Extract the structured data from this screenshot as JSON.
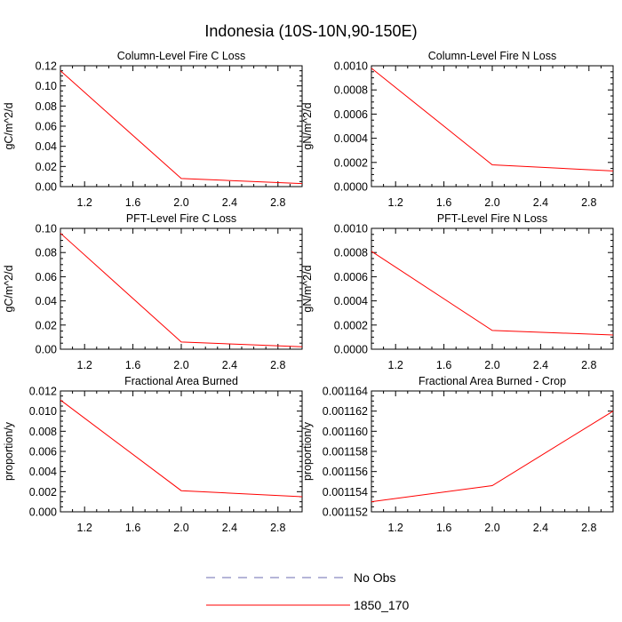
{
  "page": {
    "title": "Indonesia (10S-10N,90-150E)"
  },
  "colors": {
    "series": "#ff0000",
    "obs": "#6b6bb0",
    "axis": "#000000",
    "background": "#ffffff"
  },
  "chart_data": [
    {
      "type": "line",
      "title": "Column-Level Fire C Loss",
      "xlabel": "",
      "ylabel": "gC/m^2/d",
      "xlim": [
        1.0,
        3.0
      ],
      "ylim": [
        0.0,
        0.12
      ],
      "x_ticks": [
        "1.2",
        "1.6",
        "2.0",
        "2.4",
        "2.8"
      ],
      "y_ticks": [
        "0.00",
        "0.02",
        "0.04",
        "0.06",
        "0.08",
        "0.10",
        "0.12"
      ],
      "series": [
        {
          "name": "1850_170",
          "x": [
            1,
            2,
            3
          ],
          "y": [
            0.115,
            0.008,
            0.003
          ]
        }
      ]
    },
    {
      "type": "line",
      "title": "Column-Level Fire N Loss",
      "xlabel": "",
      "ylabel": "gN/m^2/d",
      "xlim": [
        1.0,
        3.0
      ],
      "ylim": [
        0.0,
        0.001
      ],
      "x_ticks": [
        "1.2",
        "1.6",
        "2.0",
        "2.4",
        "2.8"
      ],
      "y_ticks": [
        "0.0000",
        "0.0002",
        "0.0004",
        "0.0006",
        "0.0008",
        "0.0010"
      ],
      "series": [
        {
          "name": "1850_170",
          "x": [
            1,
            2,
            3
          ],
          "y": [
            0.00098,
            0.00018,
            0.00013
          ]
        }
      ]
    },
    {
      "type": "line",
      "title": "PFT-Level Fire C Loss",
      "xlabel": "",
      "ylabel": "gC/m^2/d",
      "xlim": [
        1.0,
        3.0
      ],
      "ylim": [
        0.0,
        0.1
      ],
      "x_ticks": [
        "1.2",
        "1.6",
        "2.0",
        "2.4",
        "2.8"
      ],
      "y_ticks": [
        "0.00",
        "0.02",
        "0.04",
        "0.06",
        "0.08",
        "0.10"
      ],
      "series": [
        {
          "name": "1850_170",
          "x": [
            1,
            2,
            3
          ],
          "y": [
            0.096,
            0.006,
            0.002
          ]
        }
      ]
    },
    {
      "type": "line",
      "title": "PFT-Level Fire N Loss",
      "xlabel": "",
      "ylabel": "gN/m^2/d",
      "xlim": [
        1.0,
        3.0
      ],
      "ylim": [
        0.0,
        0.001
      ],
      "x_ticks": [
        "1.2",
        "1.6",
        "2.0",
        "2.4",
        "2.8"
      ],
      "y_ticks": [
        "0.0000",
        "0.0002",
        "0.0004",
        "0.0006",
        "0.0008",
        "0.0010"
      ],
      "series": [
        {
          "name": "1850_170",
          "x": [
            1,
            2,
            3
          ],
          "y": [
            0.00081,
            0.000155,
            0.000118
          ]
        }
      ]
    },
    {
      "type": "line",
      "title": "Fractional Area Burned",
      "xlabel": "",
      "ylabel": "proportion/y",
      "xlim": [
        1.0,
        3.0
      ],
      "ylim": [
        0.0,
        0.012
      ],
      "x_ticks": [
        "1.2",
        "1.6",
        "2.0",
        "2.4",
        "2.8"
      ],
      "y_ticks": [
        "0.000",
        "0.002",
        "0.004",
        "0.006",
        "0.008",
        "0.010",
        "0.012"
      ],
      "series": [
        {
          "name": "1850_170",
          "x": [
            1,
            2,
            3
          ],
          "y": [
            0.0111,
            0.0021,
            0.0015
          ]
        }
      ]
    },
    {
      "type": "line",
      "title": "Fractional Area Burned - Crop",
      "xlabel": "",
      "ylabel": "proportion/y",
      "xlim": [
        1.0,
        3.0
      ],
      "ylim": [
        0.001152,
        0.001164
      ],
      "x_ticks": [
        "1.2",
        "1.6",
        "2.0",
        "2.4",
        "2.8"
      ],
      "y_ticks": [
        "0.001152",
        "0.001154",
        "0.001156",
        "0.001158",
        "0.001160",
        "0.001162",
        "0.001164"
      ],
      "series": [
        {
          "name": "1850_170",
          "x": [
            1,
            2,
            3
          ],
          "y": [
            0.001153,
            0.0011546,
            0.001162
          ]
        }
      ]
    }
  ],
  "legend": {
    "placement": "bottom-center",
    "entries": [
      {
        "label": "No Obs",
        "style": "dashed",
        "color": "#6b6bb0"
      },
      {
        "label": "1850_170",
        "style": "solid",
        "color": "#ff0000"
      }
    ]
  }
}
